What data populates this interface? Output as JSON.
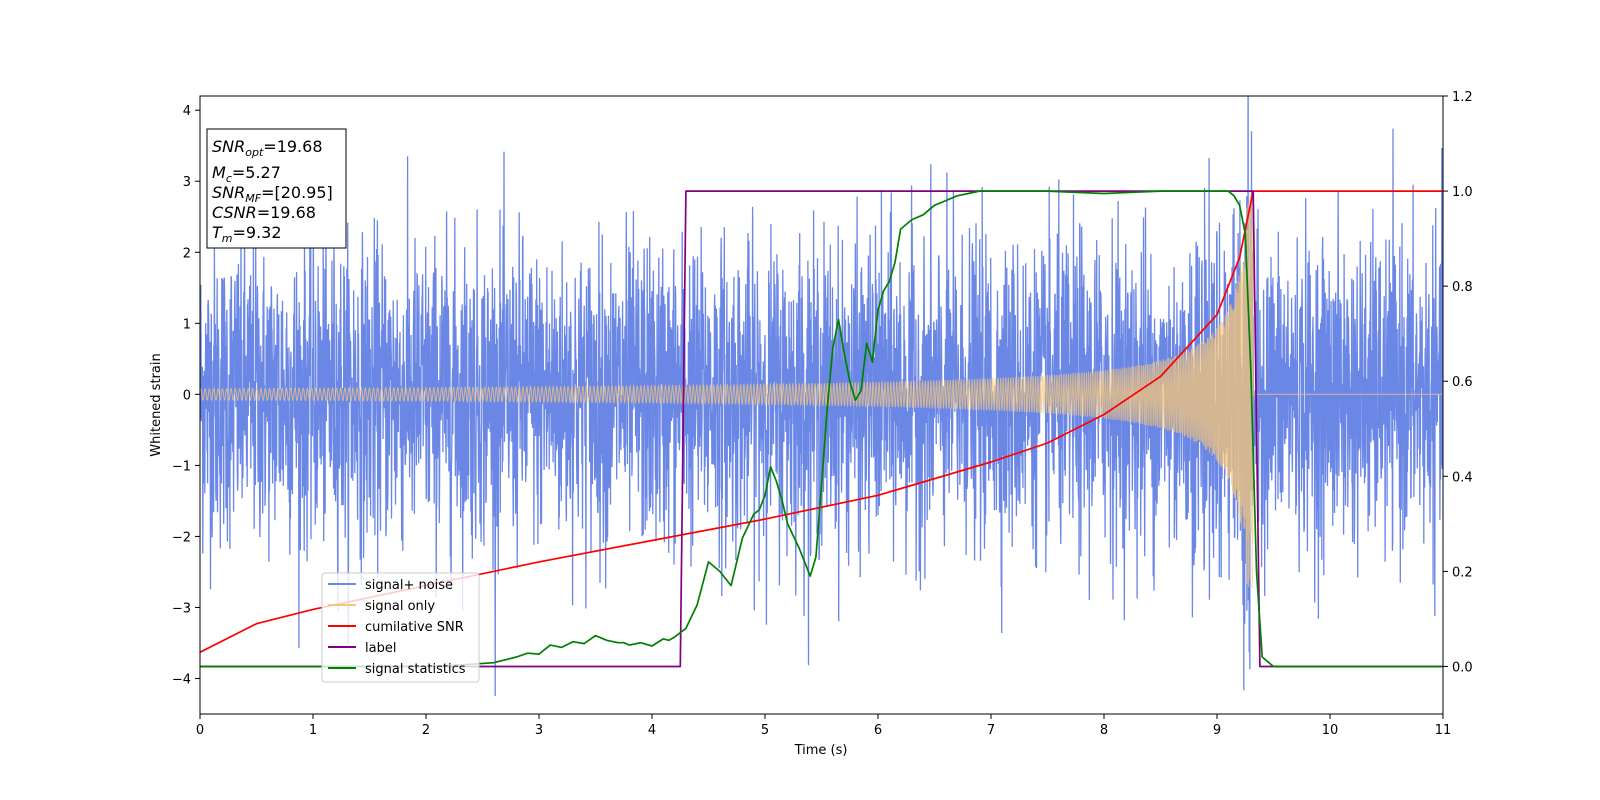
{
  "chart_data": {
    "type": "line",
    "xlabel": "Time (s)",
    "ylabel": "Whitened strain",
    "xlim": [
      0,
      11
    ],
    "ylim_left": [
      -4.5,
      4.2
    ],
    "ylim_right": [
      -0.1,
      1.2
    ],
    "xticks": [
      "0",
      "1",
      "2",
      "3",
      "4",
      "5",
      "6",
      "7",
      "8",
      "9",
      "10",
      "11"
    ],
    "yticks_left": [
      "−4",
      "−3",
      "−2",
      "−1",
      "0",
      "1",
      "2",
      "3",
      "4"
    ],
    "yticks_right": [
      "0.0",
      "0.2",
      "0.4",
      "0.6",
      "0.8",
      "1.0",
      "1.2"
    ],
    "legend_position": "lower-left",
    "annotation": {
      "snr_opt": {
        "base": "SNR",
        "sub": "opt",
        "value": "=19.68"
      },
      "mc": {
        "base": "M",
        "sub": "c",
        "value": "=5.27"
      },
      "snr_mf": {
        "base": "SNR",
        "sub": "MF",
        "value": "=[20.95]"
      },
      "csnr": {
        "base": "CSNR",
        "value": "=19.68"
      },
      "tm": {
        "base": "T",
        "sub": "m",
        "value": "=9.32"
      }
    },
    "series": [
      {
        "name": "signal+ noise",
        "color": "#6b87e6",
        "axis": "left",
        "description_values": {
          "noise_std": 1.0,
          "t_merge": 9.32
        }
      },
      {
        "name": "signal only",
        "color": "#f5c77a",
        "axis": "left",
        "amplitude_start": 0.08,
        "amplitude_peak": 2.8,
        "t_merge": 9.32
      },
      {
        "name": "cumilative SNR",
        "color": "#ff0000",
        "axis": "right",
        "x": [
          0,
          0.5,
          1,
          2,
          3,
          4,
          5,
          6,
          7,
          7.5,
          8,
          8.5,
          9,
          9.2,
          9.32,
          11
        ],
        "y": [
          0.03,
          0.09,
          0.12,
          0.17,
          0.22,
          0.265,
          0.31,
          0.36,
          0.43,
          0.47,
          0.53,
          0.61,
          0.74,
          0.86,
          1.0,
          1.0
        ]
      },
      {
        "name": "label",
        "color": "#800080",
        "axis": "right",
        "x": [
          0,
          4.25,
          4.3,
          9.32,
          9.38,
          11
        ],
        "y": [
          0,
          0,
          1,
          1,
          0,
          0
        ]
      },
      {
        "name": "signal statistics",
        "color": "#008000",
        "axis": "right",
        "x": [
          0,
          2.0,
          2.3,
          2.6,
          2.8,
          2.9,
          3.0,
          3.1,
          3.2,
          3.3,
          3.4,
          3.5,
          3.6,
          3.7,
          3.75,
          3.8,
          3.9,
          4.0,
          4.1,
          4.15,
          4.2,
          4.3,
          4.4,
          4.5,
          4.6,
          4.7,
          4.8,
          4.9,
          4.95,
          5.0,
          5.05,
          5.1,
          5.15,
          5.2,
          5.3,
          5.4,
          5.45,
          5.5,
          5.55,
          5.6,
          5.65,
          5.7,
          5.75,
          5.8,
          5.85,
          5.9,
          5.95,
          6.0,
          6.05,
          6.1,
          6.15,
          6.2,
          6.3,
          6.4,
          6.5,
          6.6,
          6.7,
          6.8,
          6.9,
          7.0,
          7.5,
          8.0,
          8.5,
          9.0,
          9.1,
          9.15,
          9.2,
          9.25,
          9.3,
          9.35,
          9.4,
          9.45,
          9.5,
          11
        ],
        "y": [
          0,
          0.0,
          0.003,
          0.008,
          0.02,
          0.028,
          0.026,
          0.045,
          0.04,
          0.052,
          0.048,
          0.065,
          0.055,
          0.05,
          0.05,
          0.045,
          0.05,
          0.043,
          0.058,
          0.055,
          0.062,
          0.08,
          0.13,
          0.22,
          0.2,
          0.17,
          0.27,
          0.32,
          0.33,
          0.36,
          0.42,
          0.39,
          0.35,
          0.3,
          0.25,
          0.19,
          0.23,
          0.38,
          0.54,
          0.67,
          0.73,
          0.66,
          0.6,
          0.56,
          0.58,
          0.68,
          0.64,
          0.75,
          0.79,
          0.81,
          0.85,
          0.92,
          0.94,
          0.95,
          0.97,
          0.98,
          0.99,
          0.995,
          1.0,
          1.0,
          1.0,
          0.995,
          1.0,
          1.0,
          1.0,
          0.99,
          0.97,
          0.91,
          0.62,
          0.2,
          0.02,
          0.01,
          0.0,
          0.0
        ]
      }
    ]
  }
}
